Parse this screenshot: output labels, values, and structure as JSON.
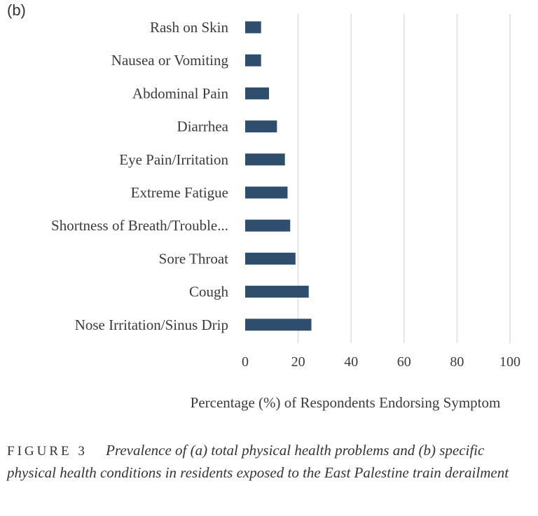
{
  "panel_label": "(b)",
  "chart_data": {
    "type": "bar",
    "orientation": "horizontal",
    "categories": [
      "Rash on Skin",
      "Nausea or Vomiting",
      "Abdominal Pain",
      "Diarrhea",
      "Eye Pain/Irritation",
      "Extreme Fatigue",
      "Shortness of Breath/Trouble...",
      "Sore Throat",
      "Cough",
      "Nose Irritation/Sinus Drip"
    ],
    "values": [
      6,
      6,
      9,
      12,
      15,
      16,
      17,
      19,
      24,
      25
    ],
    "xlabel": "Percentage (%) of Respondents Endorsing Symptom",
    "ylabel": "",
    "xlim": [
      0,
      100
    ],
    "xticks": [
      0,
      20,
      40,
      60,
      80,
      100
    ],
    "grid": "vertical",
    "bar_color": "#2f4d6d",
    "grid_color": "#dedede"
  },
  "caption": {
    "label": "FIGURE 3",
    "text": "Prevalence of (a) total physical health problems and (b) specific physical health conditions in residents exposed to the East Palestine train derailment"
  }
}
